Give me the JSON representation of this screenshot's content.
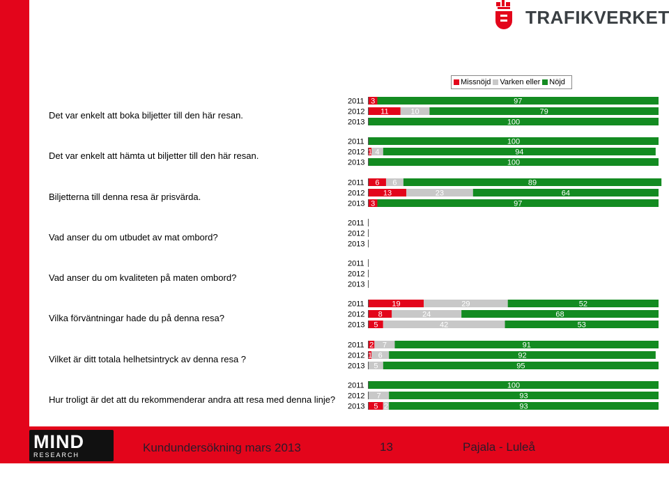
{
  "brand": {
    "name": "TRAFIKVERKET",
    "color": "#3a3f43",
    "accent": "#e3051b"
  },
  "footer": {
    "logo_main": "MIND",
    "logo_sub": "RESEARCH",
    "survey": "Kundundersökning mars 2013",
    "page": "13",
    "route": "Pajala - Luleå"
  },
  "legend": [
    {
      "label": "Missnöjd",
      "color": "#e3051b"
    },
    {
      "label": "Varken eller",
      "color": "#c8c8c8"
    },
    {
      "label": "Nöjd",
      "color": "#138b21"
    }
  ],
  "chart_data": {
    "type": "bar",
    "stacked": true,
    "orientation": "horizontal",
    "series_names": [
      "Missnöjd",
      "Varken eller",
      "Nöjd"
    ],
    "colors": [
      "#e3051b",
      "#c8c8c8",
      "#138b21"
    ],
    "xlim": [
      0,
      100
    ],
    "questions": [
      {
        "label": "Det var enkelt att boka biljetter till den här resan.",
        "rows": [
          {
            "year": "2011",
            "values": [
              3,
              0,
              97
            ]
          },
          {
            "year": "2012",
            "values": [
              11,
              10,
              79
            ]
          },
          {
            "year": "2013",
            "values": [
              0,
              0,
              100
            ]
          }
        ]
      },
      {
        "label": "Det var enkelt att hämta ut biljetter till den här resan.",
        "rows": [
          {
            "year": "2011",
            "values": [
              0,
              0,
              100
            ]
          },
          {
            "year": "2012",
            "values": [
              1,
              4,
              94
            ]
          },
          {
            "year": "2013",
            "values": [
              0,
              0,
              100
            ]
          }
        ]
      },
      {
        "label": "Biljetterna till denna resa är prisvärda.",
        "rows": [
          {
            "year": "2011",
            "values": [
              6,
              6,
              89
            ]
          },
          {
            "year": "2012",
            "values": [
              13,
              23,
              64
            ]
          },
          {
            "year": "2013",
            "values": [
              3,
              0,
              97
            ]
          }
        ]
      },
      {
        "label": "Vad anser du om utbudet av mat ombord?",
        "rows": [
          {
            "year": "2011",
            "values": [
              0,
              0,
              0
            ]
          },
          {
            "year": "2012",
            "values": [
              0,
              0,
              0
            ]
          },
          {
            "year": "2013",
            "values": [
              0,
              0,
              0
            ]
          }
        ]
      },
      {
        "label": "Vad anser du om kvaliteten på maten ombord?",
        "rows": [
          {
            "year": "2011",
            "values": [
              0,
              0,
              0
            ]
          },
          {
            "year": "2012",
            "values": [
              0,
              0,
              0
            ]
          },
          {
            "year": "2013",
            "values": [
              0,
              0,
              0
            ]
          }
        ]
      },
      {
        "label": "Vilka förväntningar hade du på denna resa?",
        "rows": [
          {
            "year": "2011",
            "values": [
              19,
              29,
              52
            ]
          },
          {
            "year": "2012",
            "values": [
              8,
              24,
              68
            ]
          },
          {
            "year": "2013",
            "values": [
              5,
              42,
              53
            ]
          }
        ]
      },
      {
        "label": "Vilket är ditt totala helhetsintryck av denna resa ?",
        "rows": [
          {
            "year": "2011",
            "values": [
              2,
              7,
              91
            ]
          },
          {
            "year": "2012",
            "values": [
              1,
              6,
              92
            ]
          },
          {
            "year": "2013",
            "values": [
              0,
              5,
              95
            ]
          }
        ]
      },
      {
        "label": "Hur troligt är det att du rekommenderar andra att resa med denna linje?",
        "rows": [
          {
            "year": "2011",
            "values": [
              0,
              0,
              100
            ]
          },
          {
            "year": "2012",
            "values": [
              0,
              7,
              93
            ]
          },
          {
            "year": "2013",
            "values": [
              5,
              2,
              93
            ]
          }
        ]
      }
    ]
  }
}
